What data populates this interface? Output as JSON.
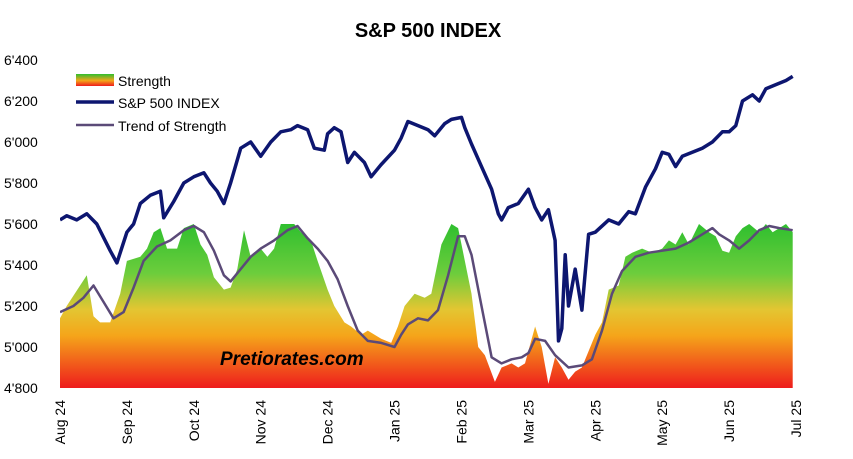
{
  "chart_data": {
    "type": "line",
    "title": "S&P 500 INDEX",
    "xlabel": "",
    "ylabel": "",
    "ylim": [
      4800,
      6400
    ],
    "y_ticks": [
      "6'400",
      "6'200",
      "6'000",
      "5'800",
      "5'600",
      "5'400",
      "5'200",
      "5'000",
      "4'800"
    ],
    "x_ticks": [
      "Aug 24",
      "Sep 24",
      "Oct 24",
      "Nov 24",
      "Dec 24",
      "Jan 25",
      "Feb 25",
      "Mar 25",
      "Apr 25",
      "May 25",
      "Jun 25",
      "Jul 25"
    ],
    "grid": false,
    "legend_position": "top-left",
    "legend": [
      "Strength",
      "S&P 500 INDEX",
      "Trend of Strength"
    ],
    "watermark": "Pretiorates.com",
    "colors": {
      "index_line": "#0d1670",
      "trend_line": "#5b4a78",
      "strength_top": "#2fbf2f",
      "strength_mid": "#f5b31a",
      "strength_bottom": "#ee1c1c"
    },
    "series": [
      {
        "name": "S&P 500 INDEX",
        "points": [
          [
            0.0,
            5620
          ],
          [
            0.1,
            5640
          ],
          [
            0.25,
            5620
          ],
          [
            0.4,
            5650
          ],
          [
            0.55,
            5600
          ],
          [
            0.75,
            5470
          ],
          [
            0.85,
            5410
          ],
          [
            1.0,
            5560
          ],
          [
            1.1,
            5600
          ],
          [
            1.2,
            5700
          ],
          [
            1.35,
            5740
          ],
          [
            1.5,
            5760
          ],
          [
            1.55,
            5630
          ],
          [
            1.7,
            5710
          ],
          [
            1.85,
            5800
          ],
          [
            2.0,
            5830
          ],
          [
            2.15,
            5850
          ],
          [
            2.25,
            5800
          ],
          [
            2.35,
            5760
          ],
          [
            2.45,
            5700
          ],
          [
            2.55,
            5800
          ],
          [
            2.7,
            5970
          ],
          [
            2.85,
            6000
          ],
          [
            3.0,
            5930
          ],
          [
            3.15,
            6000
          ],
          [
            3.3,
            6050
          ],
          [
            3.45,
            6060
          ],
          [
            3.55,
            6080
          ],
          [
            3.7,
            6060
          ],
          [
            3.8,
            5970
          ],
          [
            3.95,
            5960
          ],
          [
            4.0,
            6040
          ],
          [
            4.1,
            6070
          ],
          [
            4.2,
            6050
          ],
          [
            4.3,
            5900
          ],
          [
            4.4,
            5950
          ],
          [
            4.55,
            5900
          ],
          [
            4.65,
            5830
          ],
          [
            4.8,
            5890
          ],
          [
            5.0,
            5960
          ],
          [
            5.1,
            6020
          ],
          [
            5.2,
            6100
          ],
          [
            5.35,
            6080
          ],
          [
            5.5,
            6060
          ],
          [
            5.6,
            6030
          ],
          [
            5.75,
            6090
          ],
          [
            5.85,
            6110
          ],
          [
            6.0,
            6120
          ],
          [
            6.05,
            6070
          ],
          [
            6.15,
            5990
          ],
          [
            6.3,
            5880
          ],
          [
            6.45,
            5770
          ],
          [
            6.55,
            5650
          ],
          [
            6.6,
            5620
          ],
          [
            6.7,
            5680
          ],
          [
            6.85,
            5700
          ],
          [
            7.0,
            5770
          ],
          [
            7.1,
            5680
          ],
          [
            7.2,
            5620
          ],
          [
            7.3,
            5670
          ],
          [
            7.4,
            5520
          ],
          [
            7.45,
            5030
          ],
          [
            7.5,
            5090
          ],
          [
            7.55,
            5450
          ],
          [
            7.6,
            5200
          ],
          [
            7.7,
            5380
          ],
          [
            7.8,
            5180
          ],
          [
            7.9,
            5550
          ],
          [
            8.0,
            5560
          ],
          [
            8.2,
            5620
          ],
          [
            8.35,
            5600
          ],
          [
            8.5,
            5660
          ],
          [
            8.6,
            5650
          ],
          [
            8.75,
            5780
          ],
          [
            8.9,
            5870
          ],
          [
            9.0,
            5950
          ],
          [
            9.1,
            5940
          ],
          [
            9.2,
            5880
          ],
          [
            9.3,
            5930
          ],
          [
            9.45,
            5950
          ],
          [
            9.6,
            5970
          ],
          [
            9.75,
            6000
          ],
          [
            9.9,
            6050
          ],
          [
            10.0,
            6050
          ],
          [
            10.1,
            6080
          ],
          [
            10.2,
            6200
          ],
          [
            10.35,
            6230
          ],
          [
            10.45,
            6200
          ],
          [
            10.55,
            6260
          ],
          [
            10.7,
            6280
          ],
          [
            10.85,
            6300
          ],
          [
            10.95,
            6320
          ]
        ]
      },
      {
        "name": "Trend of Strength",
        "points": [
          [
            0.0,
            5170
          ],
          [
            0.2,
            5200
          ],
          [
            0.35,
            5240
          ],
          [
            0.5,
            5300
          ],
          [
            0.65,
            5220
          ],
          [
            0.8,
            5140
          ],
          [
            0.95,
            5170
          ],
          [
            1.1,
            5290
          ],
          [
            1.25,
            5420
          ],
          [
            1.45,
            5490
          ],
          [
            1.65,
            5520
          ],
          [
            1.85,
            5570
          ],
          [
            2.0,
            5590
          ],
          [
            2.15,
            5560
          ],
          [
            2.3,
            5470
          ],
          [
            2.45,
            5350
          ],
          [
            2.55,
            5320
          ],
          [
            2.7,
            5380
          ],
          [
            2.85,
            5440
          ],
          [
            3.0,
            5480
          ],
          [
            3.2,
            5520
          ],
          [
            3.4,
            5570
          ],
          [
            3.55,
            5590
          ],
          [
            3.7,
            5530
          ],
          [
            3.85,
            5480
          ],
          [
            4.0,
            5420
          ],
          [
            4.15,
            5330
          ],
          [
            4.3,
            5200
          ],
          [
            4.45,
            5080
          ],
          [
            4.6,
            5030
          ],
          [
            4.8,
            5020
          ],
          [
            5.0,
            5000
          ],
          [
            5.1,
            5060
          ],
          [
            5.2,
            5110
          ],
          [
            5.35,
            5140
          ],
          [
            5.5,
            5130
          ],
          [
            5.65,
            5180
          ],
          [
            5.8,
            5350
          ],
          [
            5.95,
            5540
          ],
          [
            6.05,
            5540
          ],
          [
            6.15,
            5450
          ],
          [
            6.3,
            5200
          ],
          [
            6.45,
            4950
          ],
          [
            6.6,
            4920
          ],
          [
            6.75,
            4940
          ],
          [
            6.9,
            4950
          ],
          [
            7.0,
            4970
          ],
          [
            7.1,
            5040
          ],
          [
            7.25,
            5030
          ],
          [
            7.4,
            4960
          ],
          [
            7.6,
            4900
          ],
          [
            7.8,
            4910
          ],
          [
            7.95,
            4940
          ],
          [
            8.1,
            5080
          ],
          [
            8.25,
            5260
          ],
          [
            8.4,
            5370
          ],
          [
            8.6,
            5440
          ],
          [
            8.8,
            5460
          ],
          [
            9.0,
            5470
          ],
          [
            9.2,
            5480
          ],
          [
            9.4,
            5510
          ],
          [
            9.6,
            5550
          ],
          [
            9.75,
            5580
          ],
          [
            9.85,
            5550
          ],
          [
            10.0,
            5520
          ],
          [
            10.15,
            5480
          ],
          [
            10.3,
            5520
          ],
          [
            10.45,
            5570
          ],
          [
            10.6,
            5590
          ],
          [
            10.75,
            5580
          ],
          [
            10.95,
            5570
          ]
        ]
      },
      {
        "name": "Strength",
        "points": [
          [
            0.0,
            5140
          ],
          [
            0.1,
            5200
          ],
          [
            0.2,
            5250
          ],
          [
            0.3,
            5300
          ],
          [
            0.4,
            5350
          ],
          [
            0.5,
            5150
          ],
          [
            0.6,
            5120
          ],
          [
            0.75,
            5120
          ],
          [
            0.9,
            5260
          ],
          [
            1.0,
            5420
          ],
          [
            1.2,
            5440
          ],
          [
            1.3,
            5480
          ],
          [
            1.4,
            5560
          ],
          [
            1.5,
            5580
          ],
          [
            1.6,
            5480
          ],
          [
            1.75,
            5480
          ],
          [
            1.85,
            5580
          ],
          [
            2.0,
            5600
          ],
          [
            2.1,
            5500
          ],
          [
            2.2,
            5450
          ],
          [
            2.3,
            5340
          ],
          [
            2.45,
            5280
          ],
          [
            2.55,
            5290
          ],
          [
            2.65,
            5380
          ],
          [
            2.75,
            5570
          ],
          [
            2.85,
            5440
          ],
          [
            3.0,
            5480
          ],
          [
            3.1,
            5440
          ],
          [
            3.2,
            5480
          ],
          [
            3.3,
            5600
          ],
          [
            3.5,
            5600
          ],
          [
            3.6,
            5560
          ],
          [
            3.75,
            5520
          ],
          [
            3.85,
            5420
          ],
          [
            4.0,
            5280
          ],
          [
            4.1,
            5200
          ],
          [
            4.25,
            5120
          ],
          [
            4.35,
            5100
          ],
          [
            4.5,
            5060
          ],
          [
            4.6,
            5080
          ],
          [
            4.8,
            5040
          ],
          [
            4.95,
            5020
          ],
          [
            5.05,
            5100
          ],
          [
            5.15,
            5200
          ],
          [
            5.3,
            5260
          ],
          [
            5.45,
            5240
          ],
          [
            5.55,
            5260
          ],
          [
            5.7,
            5500
          ],
          [
            5.85,
            5600
          ],
          [
            5.95,
            5580
          ],
          [
            6.0,
            5500
          ],
          [
            6.15,
            5260
          ],
          [
            6.25,
            5000
          ],
          [
            6.35,
            4960
          ],
          [
            6.5,
            4830
          ],
          [
            6.6,
            4900
          ],
          [
            6.75,
            4920
          ],
          [
            6.85,
            4900
          ],
          [
            6.95,
            4920
          ],
          [
            7.1,
            5100
          ],
          [
            7.2,
            5000
          ],
          [
            7.3,
            4820
          ],
          [
            7.4,
            4950
          ],
          [
            7.5,
            4900
          ],
          [
            7.6,
            4840
          ],
          [
            7.7,
            4880
          ],
          [
            7.8,
            4900
          ],
          [
            7.9,
            4980
          ],
          [
            8.0,
            5060
          ],
          [
            8.1,
            5120
          ],
          [
            8.2,
            5280
          ],
          [
            8.35,
            5300
          ],
          [
            8.45,
            5440
          ],
          [
            8.55,
            5460
          ],
          [
            8.7,
            5480
          ],
          [
            8.85,
            5460
          ],
          [
            9.0,
            5480
          ],
          [
            9.1,
            5520
          ],
          [
            9.2,
            5500
          ],
          [
            9.3,
            5560
          ],
          [
            9.4,
            5500
          ],
          [
            9.55,
            5600
          ],
          [
            9.7,
            5560
          ],
          [
            9.8,
            5540
          ],
          [
            9.9,
            5470
          ],
          [
            10.0,
            5460
          ],
          [
            10.1,
            5540
          ],
          [
            10.2,
            5580
          ],
          [
            10.3,
            5600
          ],
          [
            10.45,
            5560
          ],
          [
            10.55,
            5600
          ],
          [
            10.65,
            5560
          ],
          [
            10.75,
            5580
          ],
          [
            10.85,
            5600
          ],
          [
            10.95,
            5560
          ]
        ]
      }
    ]
  }
}
